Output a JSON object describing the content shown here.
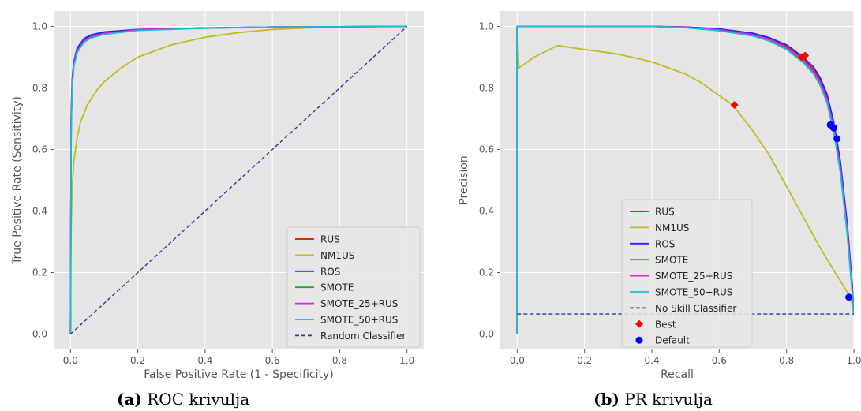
{
  "chart_data": [
    {
      "type": "line",
      "xlabel": "False Positive Rate (1 - Specificity)",
      "ylabel": "True Positive Rate (Sensitivity)",
      "xlim": [
        -0.05,
        1.05
      ],
      "ylim": [
        -0.05,
        1.05
      ],
      "xticks": [
        "0.0",
        "0.2",
        "0.4",
        "0.6",
        "0.8",
        "1.0"
      ],
      "yticks": [
        "0.0",
        "0.2",
        "0.4",
        "0.6",
        "0.8",
        "1.0"
      ],
      "grid": true,
      "legend_position": "lower-right",
      "caption_label": "(a)",
      "caption_text": "ROC krivulja",
      "series": [
        {
          "name": "RUS",
          "color": "#ff0000",
          "x": [
            0,
            0.002,
            0.005,
            0.01,
            0.02,
            0.04,
            0.06,
            0.1,
            0.2,
            0.4,
            0.6,
            0.8,
            1.0
          ],
          "y": [
            0,
            0.7,
            0.82,
            0.88,
            0.925,
            0.955,
            0.968,
            0.978,
            0.99,
            0.995,
            0.998,
            0.999,
            1.0
          ]
        },
        {
          "name": "NM1US",
          "color": "#bcbd22",
          "x": [
            0,
            0.002,
            0.005,
            0.01,
            0.02,
            0.03,
            0.05,
            0.08,
            0.1,
            0.15,
            0.2,
            0.3,
            0.4,
            0.5,
            0.6,
            0.7,
            0.8,
            0.9,
            1.0
          ],
          "y": [
            0,
            0.35,
            0.48,
            0.56,
            0.64,
            0.69,
            0.745,
            0.795,
            0.82,
            0.865,
            0.9,
            0.94,
            0.965,
            0.98,
            0.99,
            0.995,
            0.998,
            0.999,
            1.0
          ]
        },
        {
          "name": "ROS",
          "color": "#2222ff",
          "x": [
            0,
            0.002,
            0.005,
            0.01,
            0.02,
            0.04,
            0.06,
            0.1,
            0.2,
            0.4,
            0.6,
            0.8,
            1.0
          ],
          "y": [
            0,
            0.72,
            0.83,
            0.885,
            0.93,
            0.96,
            0.972,
            0.982,
            0.99,
            0.995,
            0.998,
            0.999,
            1.0
          ]
        },
        {
          "name": "SMOTE",
          "color": "#2ca02c",
          "x": [
            0,
            0.002,
            0.005,
            0.01,
            0.02,
            0.04,
            0.06,
            0.1,
            0.2,
            0.4,
            0.6,
            0.8,
            1.0
          ],
          "y": [
            0,
            0.68,
            0.81,
            0.875,
            0.92,
            0.952,
            0.965,
            0.976,
            0.988,
            0.995,
            0.998,
            0.999,
            1.0
          ]
        },
        {
          "name": "SMOTE_25+RUS",
          "color": "#dd22dd",
          "x": [
            0,
            0.002,
            0.005,
            0.01,
            0.02,
            0.04,
            0.06,
            0.1,
            0.2,
            0.4,
            0.6,
            0.8,
            1.0
          ],
          "y": [
            0,
            0.69,
            0.815,
            0.878,
            0.922,
            0.953,
            0.966,
            0.977,
            0.989,
            0.995,
            0.998,
            0.999,
            1.0
          ]
        },
        {
          "name": "SMOTE_50+RUS",
          "color": "#17becf",
          "x": [
            0,
            0.002,
            0.005,
            0.01,
            0.02,
            0.04,
            0.06,
            0.1,
            0.2,
            0.4,
            0.6,
            0.8,
            1.0
          ],
          "y": [
            0,
            0.67,
            0.805,
            0.87,
            0.915,
            0.948,
            0.962,
            0.974,
            0.987,
            0.994,
            0.998,
            0.999,
            1.0
          ]
        },
        {
          "name": "Random Classifier",
          "color": "#2a3a9a",
          "dash": true,
          "x": [
            0,
            1
          ],
          "y": [
            0,
            1
          ]
        }
      ]
    },
    {
      "type": "line",
      "xlabel": "Recall",
      "ylabel": "Precision",
      "xlim": [
        -0.05,
        1.0
      ],
      "ylim": [
        -0.05,
        1.05
      ],
      "xticks": [
        "0.0",
        "0.2",
        "0.4",
        "0.6",
        "0.8",
        "1.0"
      ],
      "yticks": [
        "0.0",
        "0.2",
        "0.4",
        "0.6",
        "0.8",
        "1.0"
      ],
      "grid": true,
      "legend_position": "lower-center",
      "caption_label": "(b)",
      "caption_text": "PR krivulja",
      "series": [
        {
          "name": "RUS",
          "color": "#ff0000",
          "x": [
            0,
            0,
            0.2,
            0.4,
            0.5,
            0.6,
            0.7,
            0.75,
            0.8,
            0.85,
            0.88,
            0.9,
            0.92,
            0.94,
            0.96,
            0.98,
            0.995,
            1.0
          ],
          "y": [
            0,
            1.0,
            1.0,
            1.0,
            0.998,
            0.99,
            0.975,
            0.96,
            0.935,
            0.895,
            0.86,
            0.825,
            0.77,
            0.68,
            0.55,
            0.35,
            0.15,
            0.065
          ]
        },
        {
          "name": "NM1US",
          "color": "#bcbd22",
          "x": [
            0,
            0,
            0.005,
            0.05,
            0.12,
            0.2,
            0.3,
            0.4,
            0.5,
            0.55,
            0.6,
            0.64,
            0.7,
            0.75,
            0.8,
            0.85,
            0.9,
            0.95,
            0.99,
            1.0
          ],
          "y": [
            0,
            1.0,
            0.865,
            0.9,
            0.938,
            0.925,
            0.91,
            0.885,
            0.845,
            0.815,
            0.775,
            0.745,
            0.66,
            0.58,
            0.48,
            0.38,
            0.28,
            0.19,
            0.12,
            0.065
          ]
        },
        {
          "name": "ROS",
          "color": "#2222ff",
          "x": [
            0,
            0,
            0.2,
            0.4,
            0.5,
            0.6,
            0.7,
            0.75,
            0.8,
            0.85,
            0.88,
            0.9,
            0.92,
            0.94,
            0.96,
            0.98,
            0.995,
            1.0
          ],
          "y": [
            0,
            1.0,
            1.0,
            1.0,
            0.998,
            0.992,
            0.978,
            0.963,
            0.94,
            0.9,
            0.868,
            0.833,
            0.78,
            0.69,
            0.56,
            0.36,
            0.16,
            0.065
          ]
        },
        {
          "name": "SMOTE",
          "color": "#2ca02c",
          "x": [
            0,
            0,
            0.2,
            0.4,
            0.5,
            0.6,
            0.7,
            0.75,
            0.8,
            0.85,
            0.88,
            0.9,
            0.92,
            0.94,
            0.96,
            0.98,
            0.995,
            1.0
          ],
          "y": [
            0,
            1.0,
            1.0,
            1.0,
            0.997,
            0.988,
            0.972,
            0.956,
            0.93,
            0.888,
            0.852,
            0.815,
            0.76,
            0.665,
            0.53,
            0.33,
            0.14,
            0.065
          ]
        },
        {
          "name": "SMOTE_25+RUS",
          "color": "#dd22dd",
          "x": [
            0,
            0,
            0.2,
            0.4,
            0.5,
            0.6,
            0.7,
            0.75,
            0.8,
            0.85,
            0.88,
            0.9,
            0.92,
            0.94,
            0.96,
            0.98,
            0.995,
            1.0
          ],
          "y": [
            0,
            1.0,
            1.0,
            1.0,
            0.997,
            0.989,
            0.973,
            0.958,
            0.932,
            0.891,
            0.855,
            0.82,
            0.765,
            0.672,
            0.54,
            0.34,
            0.145,
            0.065
          ]
        },
        {
          "name": "SMOTE_50+RUS",
          "color": "#17becf",
          "x": [
            0,
            0,
            0.2,
            0.4,
            0.5,
            0.6,
            0.7,
            0.75,
            0.8,
            0.85,
            0.88,
            0.9,
            0.92,
            0.94,
            0.96,
            0.98,
            0.995,
            1.0
          ],
          "y": [
            0,
            1.0,
            1.0,
            1.0,
            0.996,
            0.986,
            0.969,
            0.952,
            0.925,
            0.882,
            0.846,
            0.808,
            0.752,
            0.658,
            0.525,
            0.325,
            0.135,
            0.065
          ]
        },
        {
          "name": "No Skill Classifier",
          "color": "#2a3a9a",
          "dash": true,
          "x": [
            0,
            1.0
          ],
          "y": [
            0.065,
            0.065
          ]
        }
      ],
      "markers": [
        {
          "name": "Best",
          "shape": "diamond",
          "color": "#ff0000",
          "x": [
            0.645,
            0.845,
            0.855
          ],
          "y": [
            0.745,
            0.9,
            0.905
          ]
        },
        {
          "name": "Default",
          "shape": "circle",
          "color": "#0000ff",
          "x": [
            0.93,
            0.94,
            0.95,
            0.985
          ],
          "y": [
            0.68,
            0.67,
            0.635,
            0.12
          ]
        }
      ]
    }
  ]
}
